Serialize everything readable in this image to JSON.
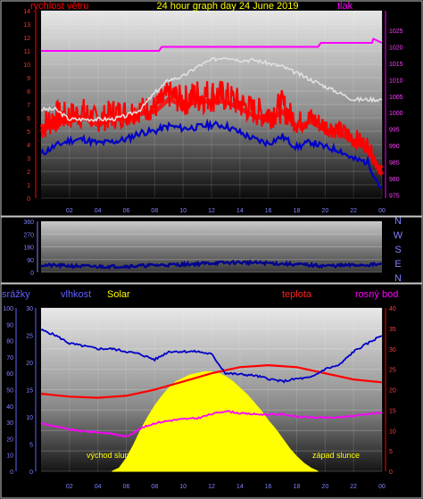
{
  "colors": {
    "bg": "#000000",
    "frame": "#c8c8c8",
    "red": "#ff0000",
    "white": "#e0e0e0",
    "blue": "#0000c8",
    "navy": "#000090",
    "magenta": "#ff00ff",
    "yellow": "#ffff00",
    "orange": "#ff8000"
  },
  "chart_data": [
    {
      "type": "line",
      "title": "24 hour graph day   24 June 2019",
      "left_label": "rychlost větru",
      "right_label": "tlak",
      "x_ticks": [
        "02",
        "04",
        "06",
        "08",
        "10",
        "12",
        "14",
        "16",
        "18",
        "20",
        "22",
        "00"
      ],
      "y_left_ticks": [
        "0",
        "1",
        "2",
        "3",
        "4",
        "5",
        "6",
        "7",
        "8",
        "9",
        "10",
        "11",
        "12",
        "13",
        "14"
      ],
      "y_right_ticks": [
        "975",
        "980",
        "985",
        "990",
        "995",
        "1000",
        "1005",
        "1010",
        "1015",
        "1020",
        "1025"
      ],
      "ylim_left": [
        0,
        14
      ],
      "ylim_right": [
        974,
        1031
      ],
      "series": [
        {
          "color": "red",
          "axis": "left",
          "style": "gust_band",
          "x": [
            0,
            1,
            2,
            3,
            4,
            5,
            6,
            7,
            8,
            9,
            10,
            11,
            12,
            13,
            14,
            15,
            16,
            17,
            18,
            19,
            20,
            21,
            22,
            23,
            24
          ],
          "base": [
            3.4,
            4.0,
            4.4,
            4.5,
            4.3,
            4.3,
            4.6,
            5.0,
            5.2,
            6.0,
            5.4,
            5.4,
            5.5,
            5.6,
            5.2,
            4.7,
            4.3,
            4.8,
            4.2,
            4.6,
            4.1,
            3.9,
            3.1,
            2.9,
            1.0
          ],
          "peak": [
            6.5,
            7.3,
            7.2,
            7.5,
            6.7,
            7.5,
            7.4,
            7.6,
            7.7,
            8.8,
            8.4,
            9.0,
            9.0,
            8.8,
            8.2,
            7.6,
            7.4,
            8.1,
            6.5,
            6.8,
            6.1,
            5.8,
            5.3,
            4.5,
            2.5
          ]
        },
        {
          "color": "blue",
          "axis": "left",
          "x": [
            0,
            1,
            2,
            3,
            4,
            5,
            6,
            7,
            8,
            9,
            10,
            11,
            12,
            13,
            14,
            15,
            16,
            17,
            18,
            19,
            20,
            21,
            22,
            23,
            24
          ],
          "y": [
            3.3,
            3.9,
            4.3,
            4.4,
            4.1,
            4.2,
            4.4,
            4.9,
            5.0,
            5.4,
            5.2,
            5.3,
            5.5,
            5.4,
            4.9,
            4.4,
            4.1,
            4.6,
            3.8,
            4.2,
            3.8,
            3.6,
            2.9,
            2.7,
            0.6
          ]
        },
        {
          "color": "white",
          "axis": "right",
          "x": [
            0,
            1,
            2,
            3,
            4,
            5,
            6,
            7,
            8,
            9,
            10,
            11,
            12,
            13,
            14,
            15,
            16,
            17,
            18,
            19,
            20,
            21,
            22,
            23,
            24
          ],
          "y": [
            1001,
            1001,
            998,
            998,
            998,
            998,
            999,
            1001,
            1006,
            1010,
            1011,
            1014,
            1016,
            1017,
            1016,
            1016,
            1015,
            1014,
            1012,
            1010,
            1008,
            1006,
            1004,
            1004,
            1004
          ]
        },
        {
          "color": "magenta",
          "axis": "left",
          "x": [
            0,
            8.3,
            8.5,
            19.5,
            19.7,
            23.3,
            23.4,
            24
          ],
          "y": [
            11.0,
            11.0,
            11.3,
            11.3,
            11.6,
            11.6,
            11.9,
            11.6
          ]
        }
      ]
    },
    {
      "type": "line",
      "y_ticks": [
        "360",
        "270",
        "180",
        "90",
        "0"
      ],
      "ylim": [
        0,
        360
      ],
      "compass_letters": [
        "N",
        "W",
        "S",
        "E",
        "N"
      ],
      "series": [
        {
          "color": "navy",
          "x": [
            0,
            2,
            4,
            6,
            8,
            10,
            12,
            14,
            16,
            18,
            20,
            22,
            24
          ],
          "y": [
            50,
            45,
            40,
            42,
            50,
            55,
            65,
            70,
            65,
            55,
            45,
            50,
            55
          ]
        }
      ]
    },
    {
      "type": "line",
      "labels": [
        "srážky",
        "vlhkost",
        "Solar",
        "teplota",
        "rosný bod"
      ],
      "annotations": [
        "východ slunce",
        "západ slunce"
      ],
      "x_ticks": [
        "02",
        "04",
        "06",
        "08",
        "10",
        "12",
        "14",
        "16",
        "18",
        "20",
        "22",
        "00"
      ],
      "y_left_ticks": [
        "0",
        "10",
        "20",
        "30",
        "40",
        "50",
        "60",
        "70",
        "80",
        "90",
        "100"
      ],
      "y_mid_ticks": [
        "0",
        "5",
        "10",
        "15",
        "20",
        "25",
        "30"
      ],
      "y_right_ticks": [
        "0",
        "5",
        "10",
        "15",
        "20",
        "25",
        "30",
        "35",
        "40"
      ],
      "ylim_pct": [
        0,
        100
      ],
      "ylim_temp": [
        0,
        40
      ],
      "series": [
        {
          "color": "yellow",
          "style": "area",
          "x": [
            5.0,
            5.5,
            6.0,
            6.5,
            7.0,
            7.5,
            8.0,
            8.5,
            9.0,
            9.5,
            10.0,
            10.5,
            11.0,
            11.5,
            12.0,
            12.5,
            13.0,
            13.5,
            14.0,
            14.5,
            15.0,
            15.5,
            16.0,
            16.5,
            17.0,
            17.5,
            18.0,
            18.5,
            19.0,
            19.5
          ],
          "y": [
            0,
            2,
            8,
            16,
            25,
            33,
            40,
            46,
            51,
            55,
            57,
            59,
            60,
            61,
            61,
            60,
            58,
            55,
            51,
            47,
            42,
            37,
            31,
            26,
            20,
            14,
            9,
            5,
            2,
            0
          ]
        },
        {
          "color": "red",
          "x": [
            0,
            2,
            4,
            6,
            8,
            10,
            12,
            14,
            16,
            18,
            20,
            22,
            24
          ],
          "y": [
            19,
            18.3,
            18,
            18.5,
            20,
            22,
            24,
            25.5,
            26,
            25.5,
            24,
            22.5,
            21.8
          ]
        },
        {
          "color": "blue",
          "x": [
            0,
            1,
            2,
            3,
            4,
            5,
            6,
            7,
            8,
            9,
            10,
            11,
            12,
            13,
            14,
            15,
            16,
            17,
            18,
            19,
            20,
            21,
            22,
            23,
            24
          ],
          "y": [
            26,
            25,
            23.5,
            23,
            22.5,
            22.5,
            22,
            21.5,
            20.5,
            22,
            22,
            22,
            21.5,
            18,
            17.8,
            17.6,
            17,
            16.5,
            17,
            17.2,
            18.8,
            19.5,
            22,
            23.5,
            25
          ]
        },
        {
          "color": "magenta",
          "x": [
            0,
            1,
            2,
            3,
            4,
            5,
            6,
            7,
            8,
            9,
            10,
            11,
            12,
            13,
            14,
            15,
            16,
            17,
            18,
            19,
            20,
            21,
            22,
            23,
            24
          ],
          "y": [
            11.8,
            11,
            10.2,
            9.8,
            9.6,
            9.2,
            8.5,
            10.5,
            11.8,
            12.4,
            12.8,
            13,
            14,
            14.8,
            14.2,
            14,
            13.9,
            14,
            13.4,
            13.2,
            13.1,
            13.2,
            13.6,
            14.1,
            14.3
          ]
        }
      ]
    }
  ]
}
